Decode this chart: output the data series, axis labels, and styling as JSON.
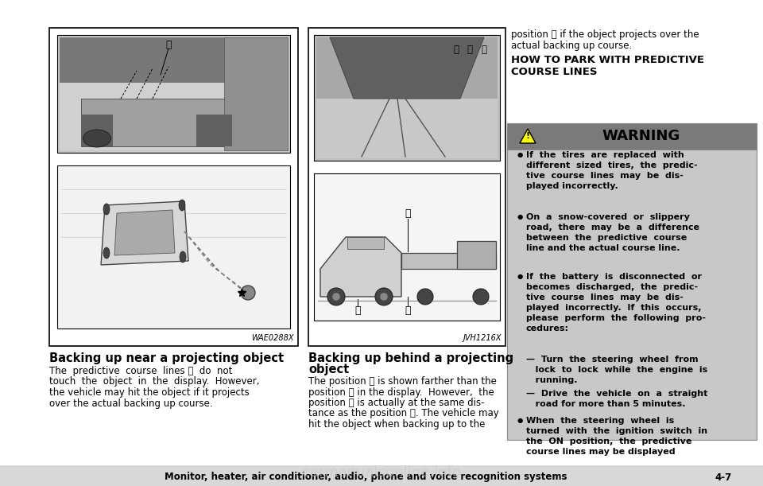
{
  "bg_color": "#ffffff",
  "left_box_title": "Backing up near a projecting object",
  "left_box_body_lines": [
    "The  predictive  course  lines Ⓐ  do  not",
    "touch  the  object  in  the  display.  However,",
    "the vehicle may hit the object if it projects",
    "over the actual backing up course."
  ],
  "right_box_title_lines": [
    "Backing up behind a projecting",
    "object"
  ],
  "right_box_body_lines": [
    "The position Ⓒ is shown farther than the",
    "position Ⓑ in the display.  However,  the",
    "position Ⓒ is actually at the same dis-",
    "tance as the position Ⓐ. The vehicle may",
    "hit the object when backing up to the"
  ],
  "top_right_lines": [
    "position Ⓐ if the object projects over the",
    "actual backing up course."
  ],
  "how_to_park_lines": [
    "HOW TO PARK WITH PREDICTIVE",
    "COURSE LINES"
  ],
  "warning_title": "WARNING",
  "warning_bullets": [
    [
      "If  the  tires  are  replaced  with",
      "different  sized  tires,  the  predic-",
      "tive  course  lines  may  be  dis-",
      "played incorrectly."
    ],
    [
      "On  a  snow-covered  or  slippery",
      "road,  there  may  be  a  difference",
      "between  the  predictive  course",
      "line and the actual course line."
    ],
    [
      "If  the  battery  is  disconnected  or",
      "becomes  discharged,  the  predic-",
      "tive  course  lines  may  be  dis-",
      "played  incorrectly.  If  this  occurs,",
      "please  perform  the  following  pro-",
      "cedures:"
    ],
    [
      "When  the  steering  wheel  is",
      "turned  with  the  ignition  switch  in",
      "the  ON  position,  the  predictive",
      "course lines may be displayed"
    ]
  ],
  "dash_items": [
    [
      "—  Turn  the  steering  wheel  from",
      "   lock  to  lock  while  the  engine  is",
      "   running."
    ],
    [
      "—  Drive  the  vehicle  on  a  straight",
      "   road for more than 5 minutes."
    ]
  ],
  "footer_text": "Monitor, heater, air conditioner, audio, phone and voice recognition systems",
  "footer_page": "4-7",
  "left_img_label": "WAE0288X",
  "right_img_label": "JVH1216X",
  "warning_bg": "#c8c8c8",
  "warning_header_bg": "#7a7a7a",
  "footer_bg": "#d8d8d8"
}
